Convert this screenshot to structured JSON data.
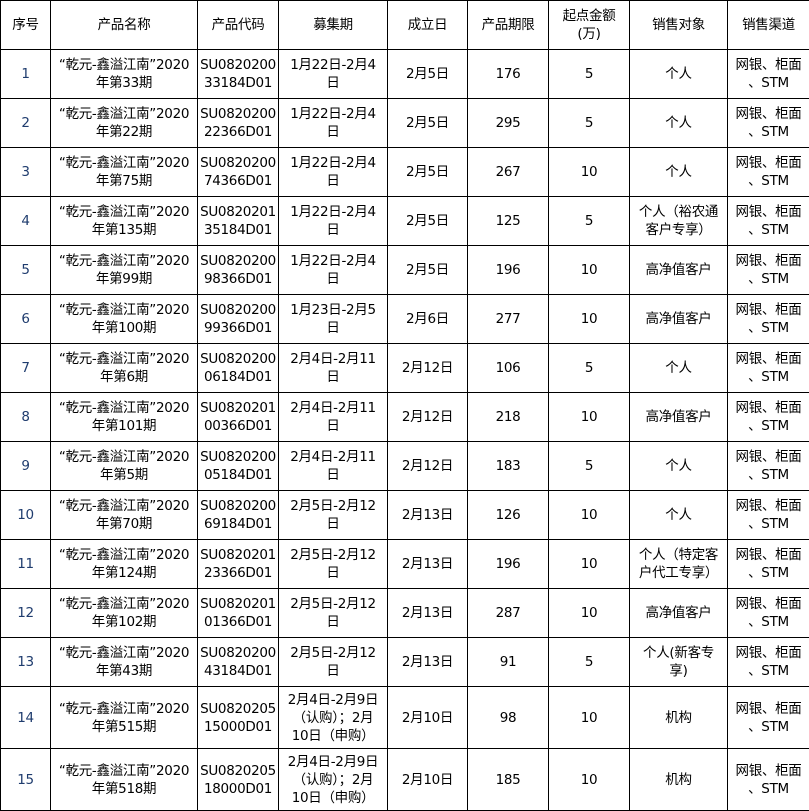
{
  "table": {
    "headers": [
      "序号",
      "产品名称",
      "产品代码",
      "募集期",
      "成立日",
      "产品期限",
      "起点金额\n(万)",
      "销售对象",
      "销售渠道"
    ],
    "rows": [
      [
        "1",
        "“乾元-鑫溢江南”2020\n年第33期",
        "SU0820200\n33184D01",
        "1月22日-2月4\n日",
        "2月5日",
        "176",
        "5",
        "个人",
        "网银、柜面\n、STM"
      ],
      [
        "2",
        "“乾元-鑫溢江南”2020\n年第22期",
        "SU0820200\n22366D01",
        "1月22日-2月4\n日",
        "2月5日",
        "295",
        "5",
        "个人",
        "网银、柜面\n、STM"
      ],
      [
        "3",
        "“乾元-鑫溢江南”2020\n年第75期",
        "SU0820200\n74366D01",
        "1月22日-2月4\n日",
        "2月5日",
        "267",
        "10",
        "个人",
        "网银、柜面\n、STM"
      ],
      [
        "4",
        "“乾元-鑫溢江南”2020\n年第135期",
        "SU0820201\n35184D01",
        "1月22日-2月4\n日",
        "2月5日",
        "125",
        "5",
        "个人（裕农通\n客户专享）",
        "网银、柜面\n、STM"
      ],
      [
        "5",
        "“乾元-鑫溢江南”2020\n年第99期",
        "SU0820200\n98366D01",
        "1月22日-2月4\n日",
        "2月5日",
        "196",
        "10",
        "高净值客户",
        "网银、柜面\n、STM"
      ],
      [
        "6",
        "“乾元-鑫溢江南”2020\n年第100期",
        "SU0820200\n99366D01",
        "1月23日-2月5\n日",
        "2月6日",
        "277",
        "10",
        "高净值客户",
        "网银、柜面\n、STM"
      ],
      [
        "7",
        "“乾元-鑫溢江南”2020\n年第6期",
        "SU0820200\n06184D01",
        "2月4日-2月11\n日",
        "2月12日",
        "106",
        "5",
        "个人",
        "网银、柜面\n、STM"
      ],
      [
        "8",
        "“乾元-鑫溢江南”2020\n年第101期",
        "SU0820201\n00366D01",
        "2月4日-2月11\n日",
        "2月12日",
        "218",
        "10",
        "高净值客户",
        "网银、柜面\n、STM"
      ],
      [
        "9",
        "“乾元-鑫溢江南”2020\n年第5期",
        "SU0820200\n05184D01",
        "2月4日-2月11\n日",
        "2月12日",
        "183",
        "5",
        "个人",
        "网银、柜面\n、STM"
      ],
      [
        "10",
        "“乾元-鑫溢江南”2020\n年第70期",
        "SU0820200\n69184D01",
        "2月5日-2月12\n日",
        "2月13日",
        "126",
        "10",
        "个人",
        "网银、柜面\n、STM"
      ],
      [
        "11",
        "“乾元-鑫溢江南”2020\n年第124期",
        "SU0820201\n23366D01",
        "2月5日-2月12\n日",
        "2月13日",
        "196",
        "10",
        "个人（特定客\n户代工专享）",
        "网银、柜面\n、STM"
      ],
      [
        "12",
        "“乾元-鑫溢江南”2020\n年第102期",
        "SU0820201\n01366D01",
        "2月5日-2月12\n日",
        "2月13日",
        "287",
        "10",
        "高净值客户",
        "网银、柜面\n、STM"
      ],
      [
        "13",
        "“乾元-鑫溢江南”2020\n年第43期",
        "SU0820200\n43184D01",
        "2月5日-2月12\n日",
        "2月13日",
        "91",
        "5",
        "个人(新客专\n享)",
        "网银、柜面\n、STM"
      ],
      [
        "14",
        "“乾元-鑫溢江南”2020\n年第515期",
        "SU0820205\n15000D01",
        "2月4日-2月9日\n（认购）；2月\n10日（申购）",
        "2月10日",
        "98",
        "10",
        "机构",
        "网银、柜面\n、STM"
      ],
      [
        "15",
        "“乾元-鑫溢江南”2020\n年第518期",
        "SU0820205\n18000D01",
        "2月4日-2月9日\n（认购）；2月\n10日（申购）",
        "2月10日",
        "185",
        "10",
        "机构",
        "网银、柜面\n、STM"
      ]
    ]
  }
}
